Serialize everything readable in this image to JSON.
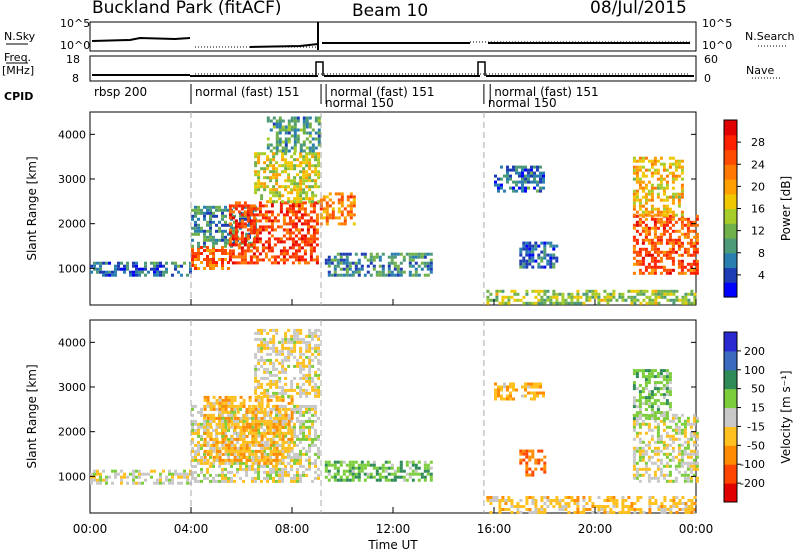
{
  "header": {
    "station": "Buckland Park (fitACF)",
    "beam": "Beam 10",
    "date": "08/Jul/2015"
  },
  "strip_labels": {
    "nsky": "N.Sky",
    "freq": "Freq.",
    "freq_unit": "[MHz]",
    "cpid": "CPID",
    "nsearch": "N.Search",
    "nave": "Nave",
    "nsky_ticks": [
      "10^5",
      "10^0"
    ],
    "nsearch_ticks": [
      "10^5",
      "10^0"
    ],
    "freq_ticks": [
      "18",
      "8"
    ],
    "nave_ticks": [
      "60",
      "0"
    ]
  },
  "cpid_segments": [
    {
      "label": "rbsp 200",
      "start": 0.0
    },
    {
      "label": "normal (fast) 151",
      "start": 4.0
    },
    {
      "label": "normal 150",
      "start": 9.15
    },
    {
      "label": "normal (fast) 151",
      "start": 9.35
    },
    {
      "label": "normal 150",
      "start": 15.6
    },
    {
      "label": "normal (fast) 151",
      "start": 15.85
    }
  ],
  "chart_data": [
    {
      "type": "heatmap",
      "title": "Power",
      "xlabel": "",
      "ylabel": "Slant Range [km]",
      "x_ticks": [
        "00:00",
        "04:00",
        "08:00",
        "12:00",
        "16:00",
        "20:00",
        "00:00"
      ],
      "xlim": [
        0,
        24
      ],
      "y_ticks": [
        1000,
        2000,
        3000,
        4000
      ],
      "ylim": [
        180,
        4500
      ],
      "colorbar": {
        "label": "Power [dB]",
        "ticks": [
          4,
          8,
          12,
          16,
          20,
          24,
          28
        ],
        "range": [
          0,
          32
        ],
        "colors": [
          "#0000ff",
          "#1e3cb4",
          "#2a7fb0",
          "#4c9a78",
          "#6fb04a",
          "#a6cc2a",
          "#f0c800",
          "#ffa000",
          "#ff7800",
          "#ff4a00",
          "#ff2000",
          "#e00000"
        ]
      },
      "regions": [
        {
          "t0": 0.0,
          "t1": 4.0,
          "r0": 850,
          "r1": 1150,
          "value": 6
        },
        {
          "t0": 4.0,
          "t1": 5.5,
          "r0": 1000,
          "r1": 1500,
          "value": 24
        },
        {
          "t0": 4.0,
          "t1": 6.5,
          "r0": 1500,
          "r1": 2400,
          "value": 8
        },
        {
          "t0": 5.5,
          "t1": 9.0,
          "r0": 1100,
          "r1": 2500,
          "value": 26
        },
        {
          "t0": 6.5,
          "t1": 9.0,
          "r0": 2500,
          "r1": 3600,
          "value": 16
        },
        {
          "t0": 7.0,
          "t1": 9.1,
          "r0": 3600,
          "r1": 4400,
          "value": 10
        },
        {
          "t0": 9.1,
          "t1": 10.5,
          "r0": 2000,
          "r1": 2700,
          "value": 22
        },
        {
          "t0": 9.3,
          "t1": 13.5,
          "r0": 850,
          "r1": 1350,
          "value": 8
        },
        {
          "t0": 15.7,
          "t1": 24.0,
          "r0": 200,
          "r1": 520,
          "value": 14
        },
        {
          "t0": 16.0,
          "t1": 18.0,
          "r0": 2700,
          "r1": 3300,
          "value": 6
        },
        {
          "t0": 17.0,
          "t1": 18.5,
          "r0": 1000,
          "r1": 1600,
          "value": 6
        },
        {
          "t0": 21.5,
          "t1": 24.0,
          "r0": 900,
          "r1": 2200,
          "value": 25
        },
        {
          "t0": 21.5,
          "t1": 23.5,
          "r0": 2200,
          "r1": 3500,
          "value": 18
        }
      ]
    },
    {
      "type": "heatmap",
      "title": "Velocity",
      "xlabel": "Time UT",
      "ylabel": "Slant Range [km]",
      "x_ticks": [
        "00:00",
        "04:00",
        "08:00",
        "12:00",
        "16:00",
        "20:00",
        "00:00"
      ],
      "xlim": [
        0,
        24
      ],
      "y_ticks": [
        1000,
        2000,
        3000,
        4000
      ],
      "ylim": [
        180,
        4500
      ],
      "colorbar": {
        "label": "Velocity [m s⁻¹]",
        "ticks": [
          "200",
          "100",
          "50",
          "15",
          "-15",
          "-50",
          "-100",
          "-200"
        ],
        "colors": [
          "#2a2ad0",
          "#3c6abf",
          "#2e8b57",
          "#7ccd3c",
          "#c8c8c8",
          "#ffc020",
          "#ff8c00",
          "#ff4500",
          "#e00000"
        ]
      },
      "regions": [
        {
          "t0": 0.0,
          "t1": 4.0,
          "r0": 850,
          "r1": 1150,
          "value": 0
        },
        {
          "t0": 4.0,
          "t1": 9.0,
          "r0": 900,
          "r1": 2600,
          "value": 0
        },
        {
          "t0": 4.5,
          "t1": 8.0,
          "r0": 1300,
          "r1": 2800,
          "value": -40
        },
        {
          "t0": 6.5,
          "t1": 9.0,
          "r0": 2800,
          "r1": 4300,
          "value": -10
        },
        {
          "t0": 9.3,
          "t1": 13.5,
          "r0": 900,
          "r1": 1350,
          "value": 40
        },
        {
          "t0": 15.7,
          "t1": 24.0,
          "r0": 200,
          "r1": 560,
          "value": -30
        },
        {
          "t0": 16.0,
          "t1": 18.0,
          "r0": 2700,
          "r1": 3100,
          "value": -40
        },
        {
          "t0": 17.0,
          "t1": 18.0,
          "r0": 1000,
          "r1": 1600,
          "value": -100
        },
        {
          "t0": 21.5,
          "t1": 24.0,
          "r0": 900,
          "r1": 2400,
          "value": 0
        },
        {
          "t0": 21.5,
          "t1": 23.0,
          "r0": 2300,
          "r1": 3400,
          "value": 30
        }
      ]
    }
  ]
}
